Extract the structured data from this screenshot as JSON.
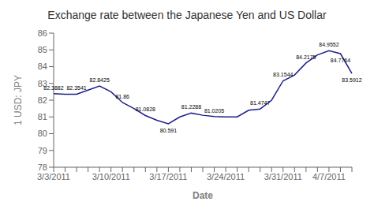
{
  "chart_data": {
    "type": "line",
    "title": "Exchange rate between the Japanese Yen and US Dollar",
    "xlabel": "Date",
    "ylabel": "1 USD: JPY",
    "categories": [
      "3/3/2011",
      null,
      null,
      null,
      null,
      "3/10/2011",
      null,
      null,
      null,
      null,
      "3/17/2011",
      null,
      null,
      null,
      null,
      "3/24/2011",
      null,
      null,
      null,
      null,
      "3/31/2011",
      null,
      null,
      null,
      "4/7/2011",
      null,
      null
    ],
    "values": [
      82.3882,
      82.35,
      82.3541,
      82.6,
      82.8425,
      82.5,
      81.86,
      81.5,
      81.0828,
      80.8,
      80.591,
      81.0,
      81.2288,
      81.1,
      81.0205,
      81.0,
      81.0,
      81.4,
      81.4747,
      82.0,
      83.1544,
      83.5,
      84.2175,
      84.7,
      84.9552,
      84.7764,
      83.5912
    ],
    "value_labels": [
      "82.3882",
      null,
      "82.3541",
      null,
      "82.8425",
      null,
      "81.86",
      null,
      "81.0828",
      null,
      "80.591",
      null,
      "81.2288",
      null,
      "81.0205",
      null,
      null,
      null,
      "81.4747",
      null,
      "83.1544",
      null,
      "84.2175",
      null,
      "84.9552",
      "84.7764",
      "83.5912"
    ],
    "color": "#1F1F8B",
    "ylim": [
      78,
      86
    ],
    "yticks": [
      78,
      79,
      80,
      81,
      82,
      83,
      84,
      85,
      86
    ],
    "grid": false,
    "data_labels": true
  }
}
